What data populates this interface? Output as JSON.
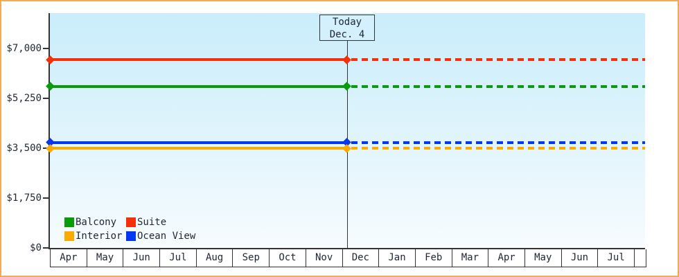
{
  "chart_data": {
    "type": "line",
    "title": "",
    "xlabel": "",
    "ylabel": "",
    "grid": false,
    "legend_position": "bottom-left-inside",
    "x_months": [
      "Apr",
      "May",
      "Jun",
      "Jul",
      "Aug",
      "Sep",
      "Oct",
      "Nov",
      "Dec",
      "Jan",
      "Feb",
      "Mar",
      "Apr",
      "May",
      "Jun",
      "Jul"
    ],
    "y_ticks": [
      {
        "label": "$7,000",
        "value": 7000
      },
      {
        "label": "$5,250",
        "value": 5250
      },
      {
        "label": "$3,500",
        "value": 3500
      },
      {
        "label": "$1,750",
        "value": 1750
      },
      {
        "label": "$0",
        "value": 0
      }
    ],
    "ylim": [
      0,
      8240
    ],
    "series": [
      {
        "name": "Suite",
        "value": 6600,
        "color": "#f53008",
        "style": "solid-then-dashed"
      },
      {
        "name": "Balcony",
        "value": 5670,
        "color": "#089c08",
        "style": "solid-then-dashed"
      },
      {
        "name": "Ocean View",
        "value": 3700,
        "color": "#0337f0",
        "style": "solid-then-dashed"
      },
      {
        "name": "Interior",
        "value": 3500,
        "color": "#fbab02",
        "style": "solid-then-dashed"
      }
    ],
    "today": {
      "line1": "Today",
      "line2": "Dec. 4",
      "month_index": 8,
      "day_fraction": 0.13
    },
    "legend": [
      {
        "label": "Balcony",
        "color": "#089c08"
      },
      {
        "label": "Suite",
        "color": "#f53008"
      },
      {
        "label": "Interior",
        "color": "#fbab02"
      },
      {
        "label": "Ocean View",
        "color": "#0337f0"
      }
    ],
    "colors": {
      "frame_border": "#eeab58",
      "plot_top": "#c9edfb",
      "plot_bottom": "#f7fcfe",
      "axis": "#333333",
      "today_box_fill": "#d4f0fc",
      "text": "#1e2633"
    }
  }
}
